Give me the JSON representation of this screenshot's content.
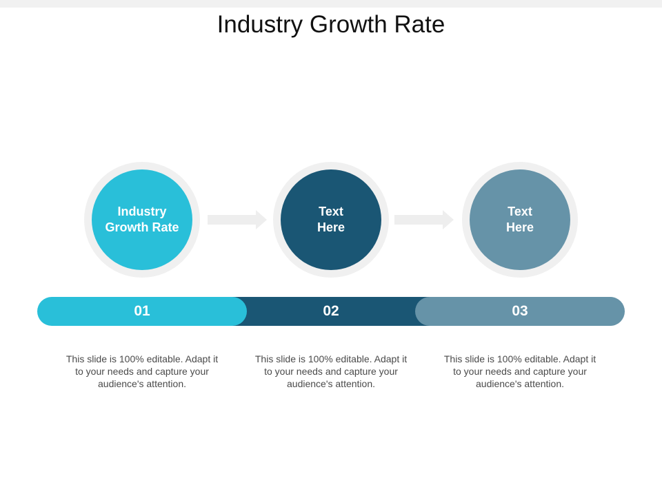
{
  "title": "Industry Growth Rate",
  "colors": {
    "step1": "#29bfd9",
    "step2": "#1a5674",
    "step3": "#6693a8",
    "ring": "#f0f0f0",
    "arrow": "#eeeeee"
  },
  "steps": [
    {
      "circle_text": "Industry\nGrowth Rate",
      "number": "01",
      "description": "This slide is 100% editable. Adapt it to your needs and capture your audience's attention."
    },
    {
      "circle_text": "Text\nHere",
      "number": "02",
      "description": "This slide is 100% editable. Adapt it to your needs and capture your audience's attention."
    },
    {
      "circle_text": "Text\nHere",
      "number": "03",
      "description": "This slide is 100% editable. Adapt it to your needs and capture your audience's attention."
    }
  ]
}
